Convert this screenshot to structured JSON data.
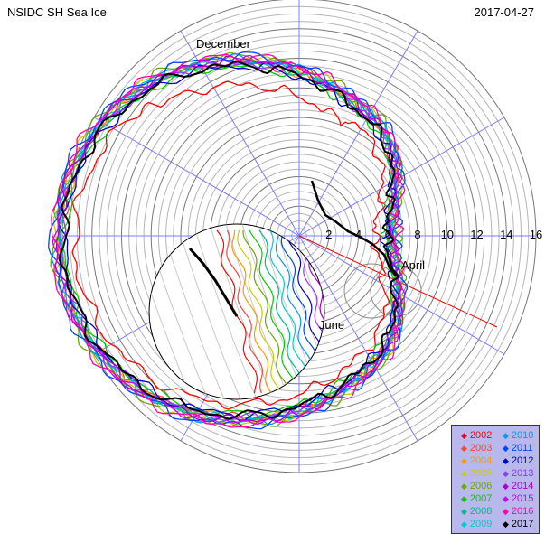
{
  "title": "NSIDC SH Sea Ice",
  "date": "2017-04-27",
  "chart_data": {
    "type": "line",
    "coordinate_system": "polar",
    "radial_ticks": [
      "2",
      "4",
      "6",
      "8",
      "10",
      "12",
      "14",
      "16"
    ],
    "rmax": 16,
    "month_labels": [
      "December",
      "April",
      "June"
    ],
    "grid": true,
    "legend_position": "bottom-right",
    "inset": "magnified view of current year track",
    "series": [
      {
        "name": "2002",
        "color": "#ff0000"
      },
      {
        "name": "2003",
        "color": "#ff4040"
      },
      {
        "name": "2004",
        "color": "#ff9900"
      },
      {
        "name": "2005",
        "color": "#cccc00"
      },
      {
        "name": "2006",
        "color": "#66aa00"
      },
      {
        "name": "2007",
        "color": "#00cc00"
      },
      {
        "name": "2008",
        "color": "#00bb88"
      },
      {
        "name": "2009",
        "color": "#00cccc"
      },
      {
        "name": "2010",
        "color": "#0099ff"
      },
      {
        "name": "2011",
        "color": "#0044ff"
      },
      {
        "name": "2012",
        "color": "#0000cc"
      },
      {
        "name": "2013",
        "color": "#9933ff"
      },
      {
        "name": "2014",
        "color": "#aa00cc"
      },
      {
        "name": "2015",
        "color": "#cc00ff"
      },
      {
        "name": "2016",
        "color": "#ff00aa"
      },
      {
        "name": "2017",
        "color": "#000000"
      }
    ]
  }
}
